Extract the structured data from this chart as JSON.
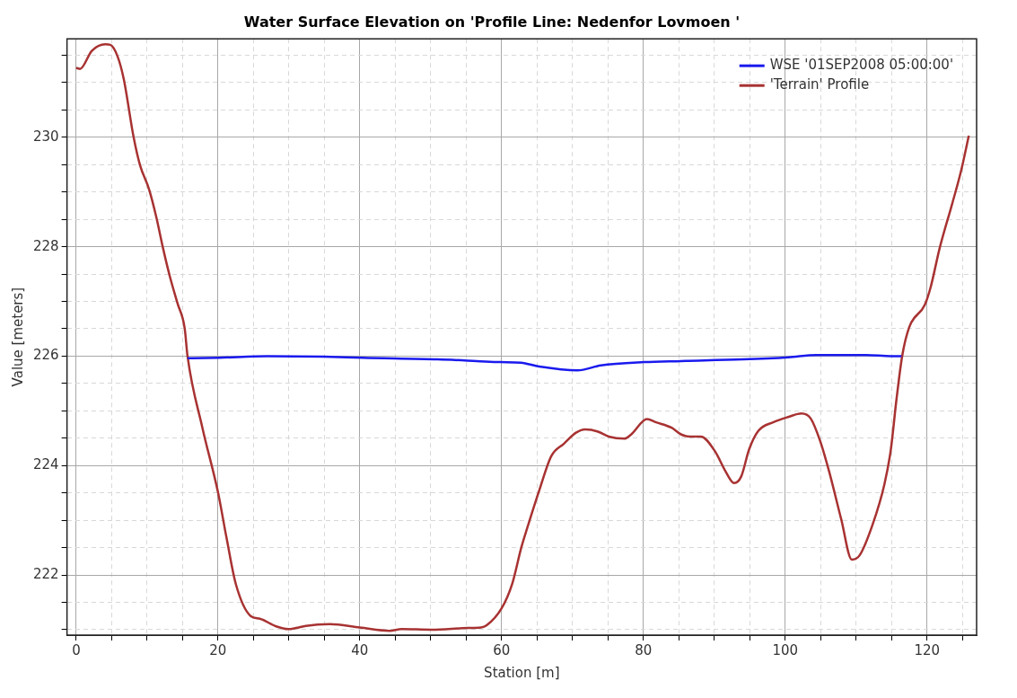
{
  "chart_data": {
    "type": "line",
    "title": "Water Surface Elevation on 'Profile Line: Nedenfor Lovmoen '",
    "xlabel": "Station [m]",
    "ylabel": "Value [meters]",
    "xlim": [
      -1.3,
      127
    ],
    "ylim": [
      220.9,
      231.8
    ],
    "xticks": [
      0,
      {
        "value": 5,
        "label": null
      },
      {
        "value": 10,
        "label": null
      },
      {
        "value": 15,
        "label": null
      },
      20,
      {
        "value": 25,
        "label": null
      },
      {
        "value": 30,
        "label": null
      },
      {
        "value": 35,
        "label": null
      },
      40,
      {
        "value": 45,
        "label": null
      },
      {
        "value": 50,
        "label": null
      },
      {
        "value": 55,
        "label": null
      },
      60,
      {
        "value": 65,
        "label": null
      },
      {
        "value": 70,
        "label": null
      },
      {
        "value": 75,
        "label": null
      },
      80,
      {
        "value": 85,
        "label": null
      },
      {
        "value": 90,
        "label": null
      },
      {
        "value": 95,
        "label": null
      },
      100,
      {
        "value": 105,
        "label": null
      },
      {
        "value": 110,
        "label": null
      },
      {
        "value": 115,
        "label": null
      },
      120,
      {
        "value": 125,
        "label": null
      }
    ],
    "yticks": [
      {
        "value": 221,
        "label": null
      },
      {
        "value": 221.5,
        "label": null
      },
      222,
      {
        "value": 222.5,
        "label": null
      },
      {
        "value": 223,
        "label": null
      },
      {
        "value": 223.5,
        "label": null
      },
      224,
      {
        "value": 224.5,
        "label": null
      },
      {
        "value": 225,
        "label": null
      },
      {
        "value": 225.5,
        "label": null
      },
      226,
      {
        "value": 226.5,
        "label": null
      },
      {
        "value": 227,
        "label": null
      },
      {
        "value": 227.5,
        "label": null
      },
      228,
      {
        "value": 228.5,
        "label": null
      },
      {
        "value": 229,
        "label": null
      },
      {
        "value": 229.5,
        "label": null
      },
      230,
      {
        "value": 230.5,
        "label": null
      },
      {
        "value": 231,
        "label": null
      },
      {
        "value": 231.5,
        "label": null
      }
    ],
    "grid": true,
    "legend": "top right",
    "marker": "none",
    "line_style": "solid",
    "series": [
      {
        "name": "WSE '01SEP2008 05:00:00'",
        "color": "#1a1aee",
        "x": [
          15.7,
          20.2,
          26.9,
          34.9,
          40.4,
          51.0,
          56.5,
          59.8,
          62.7,
          65.3,
          70.7,
          74.0,
          80.1,
          85.3,
          94.0,
          100.5,
          104.4,
          111.4,
          114.9,
          116.4
        ],
        "values": [
          225.96,
          225.97,
          226.0,
          225.99,
          225.97,
          225.94,
          225.91,
          225.89,
          225.88,
          225.81,
          225.74,
          225.83,
          225.89,
          225.91,
          225.94,
          225.98,
          226.02,
          226.02,
          226.0,
          226.0
        ]
      },
      {
        "name": "'Terrain' Profile",
        "color": "#a83232",
        "x": [
          0,
          0.55,
          2.2,
          4.1,
          4.8,
          5.8,
          6.7,
          8.1,
          9.0,
          10.3,
          11.3,
          12.2,
          13.2,
          14.3,
          15.3,
          15.7,
          17.8,
          20.0,
          21.2,
          22.5,
          24.6,
          25.9,
          28.2,
          29.9,
          31.0,
          32.4,
          35.8,
          40.0,
          44.2,
          45.9,
          50.1,
          55.2,
          57.1,
          57.9,
          60.0,
          61.5,
          62.8,
          63.6,
          65.3,
          67.0,
          68.8,
          70.5,
          71.8,
          73.6,
          75.1,
          77.3,
          78.3,
          80.5,
          81.8,
          84.0,
          85.3,
          86.6,
          88.1,
          90.1,
          91.6,
          92.8,
          93.8,
          94.9,
          96.2,
          98.3,
          100.5,
          102.3,
          103.6,
          104.9,
          106.2,
          107.9,
          109.4,
          110.5,
          112.3,
          114.0,
          114.9,
          115.7,
          116.5,
          117.5,
          119.7,
          120.5,
          121.8,
          123.5,
          124.8,
          125.9
        ],
        "values": [
          231.27,
          231.25,
          231.58,
          231.7,
          231.69,
          231.49,
          231.07,
          230.0,
          229.49,
          229.04,
          228.54,
          228.0,
          227.46,
          226.96,
          226.51,
          226.0,
          224.69,
          223.51,
          222.68,
          221.84,
          221.25,
          221.2,
          221.06,
          221.01,
          221.03,
          221.07,
          221.1,
          221.04,
          220.98,
          221.01,
          221.0,
          221.03,
          221.04,
          221.08,
          221.39,
          221.84,
          222.51,
          222.85,
          223.54,
          224.17,
          224.4,
          224.6,
          224.66,
          224.62,
          224.53,
          224.49,
          224.57,
          224.85,
          224.79,
          224.69,
          224.57,
          224.53,
          224.53,
          224.26,
          223.89,
          223.68,
          223.8,
          224.29,
          224.63,
          224.79,
          224.89,
          224.95,
          224.86,
          224.46,
          223.89,
          223.02,
          222.28,
          222.36,
          222.91,
          223.66,
          224.29,
          225.21,
          226.0,
          226.53,
          226.94,
          227.25,
          227.98,
          228.76,
          229.38,
          230.03
        ]
      }
    ]
  }
}
